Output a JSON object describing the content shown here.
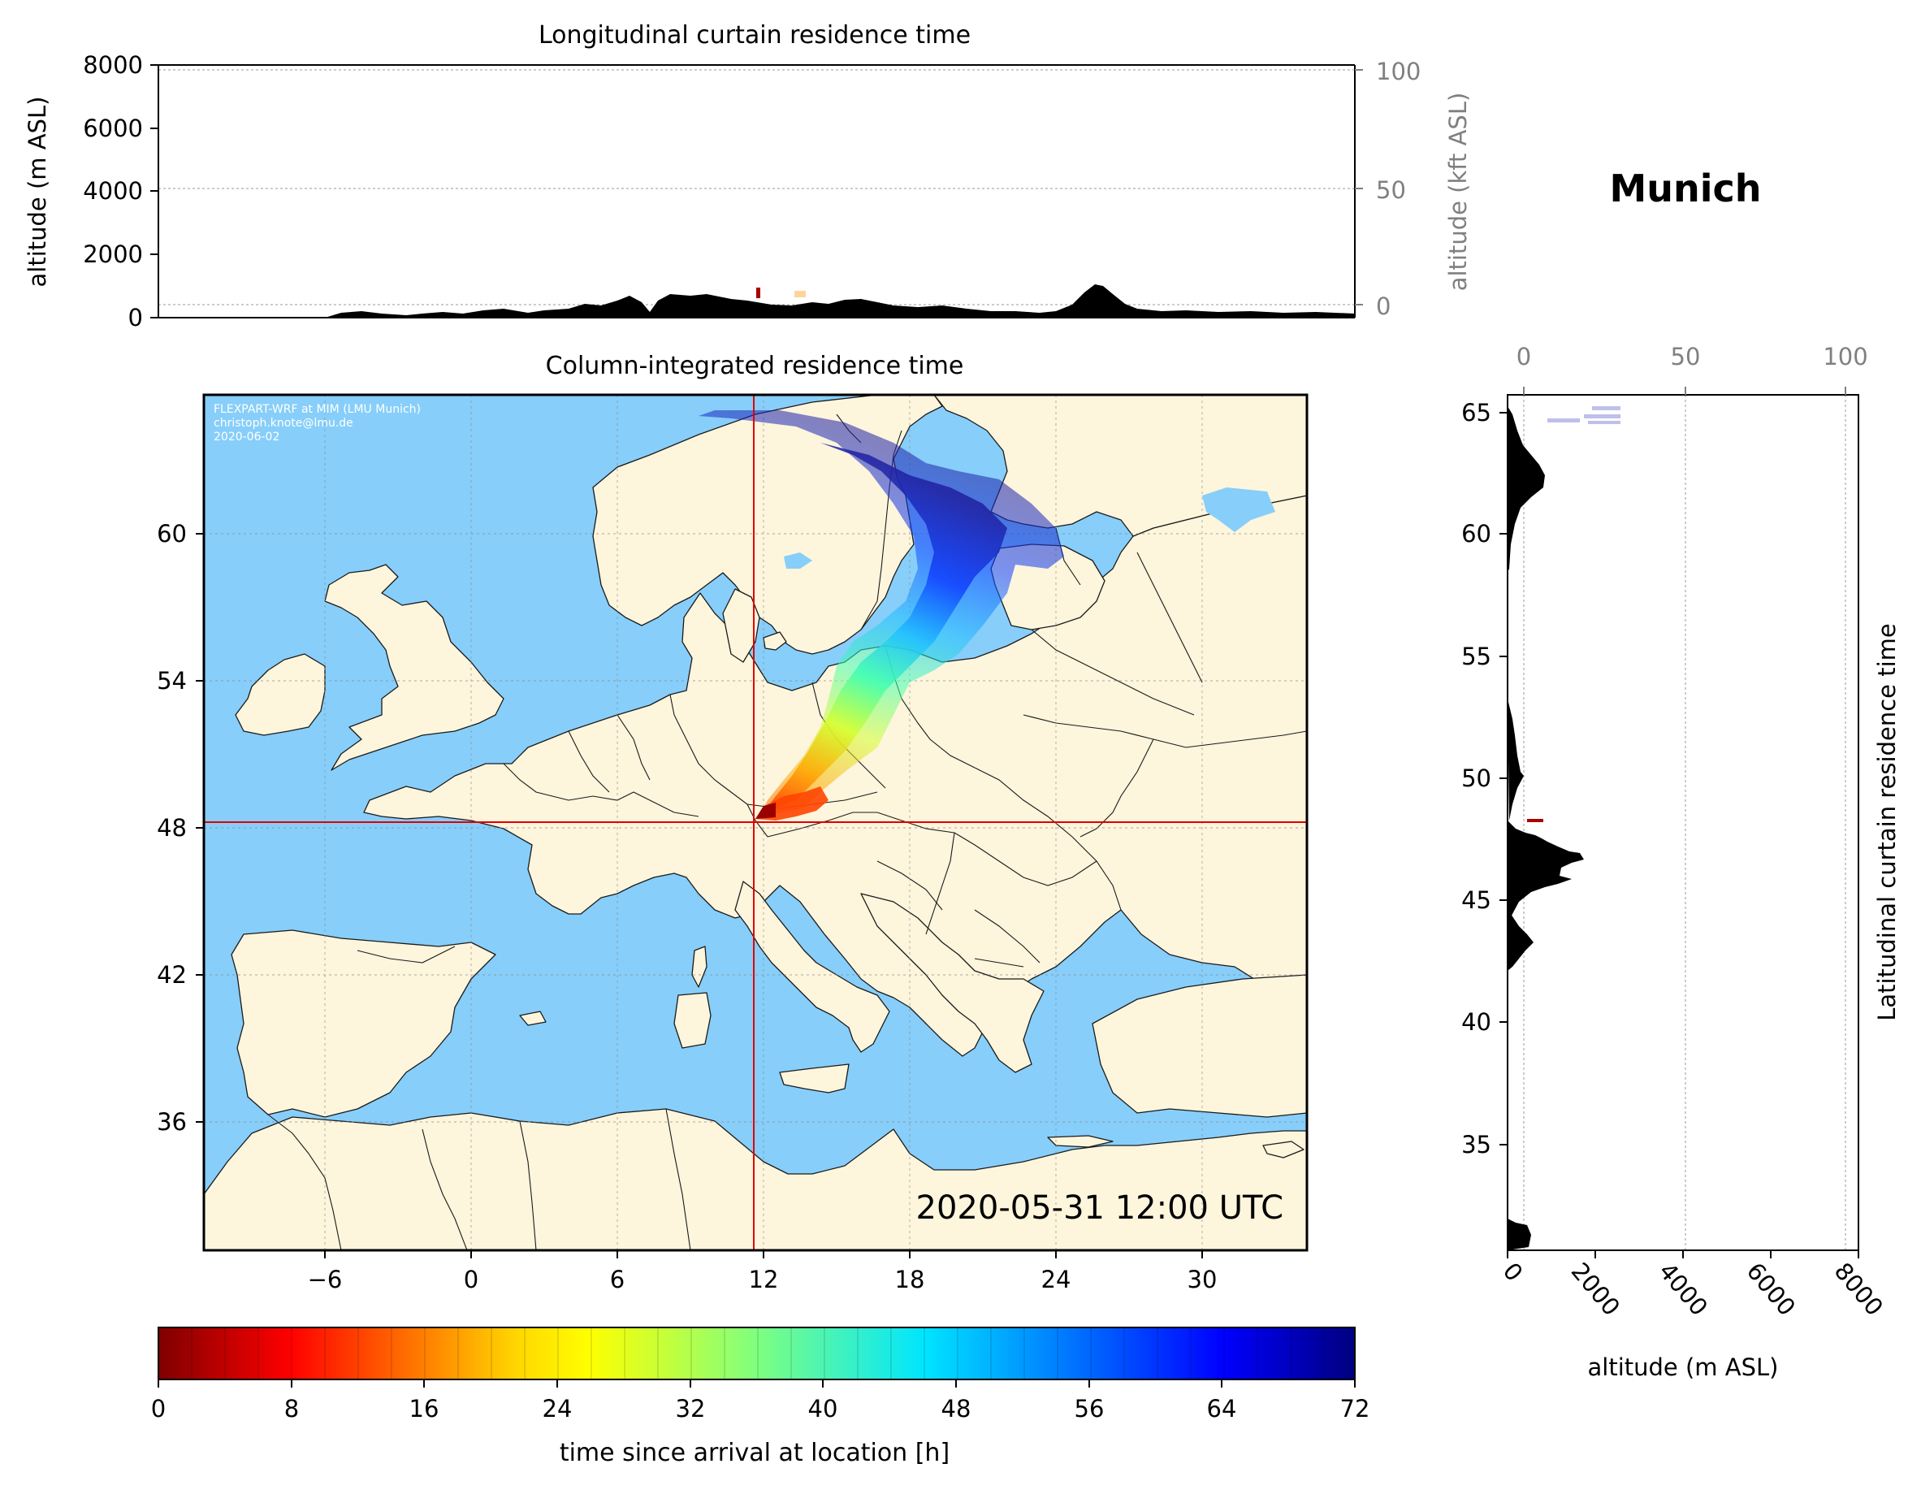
{
  "location_title": "Munich",
  "longitudinal": {
    "title": "Longitudinal curtain residence time",
    "ylabel_left": "altitude (m ASL)",
    "ylabel_right": "altitude (kft ASL)",
    "y_ticks_m": [
      "0",
      "2000",
      "4000",
      "6000",
      "8000"
    ],
    "y_ticks_kft": [
      "0",
      "50",
      "100"
    ]
  },
  "map": {
    "title": "Column-integrated residence time",
    "credit_lines": [
      "FLEXPART-WRF at MIM (LMU Munich)",
      "christoph.knote@lmu.de",
      "2020-06-02"
    ],
    "timestamp": "2020-05-31 12:00 UTC",
    "lon_ticks": [
      "−6",
      "0",
      "6",
      "12",
      "18",
      "24",
      "30"
    ],
    "lat_ticks": [
      "60",
      "54",
      "48",
      "42",
      "36"
    ],
    "crosshair": {
      "lon": 11.6,
      "lat": 48.1
    },
    "colors": {
      "sea": "#87cefa",
      "land": "#fdf5dc",
      "crosshair": "#e00000"
    }
  },
  "latitudinal": {
    "title": "Latitudinal curtain residence time",
    "xlabel": "altitude (m ASL)",
    "x_ticks_m": [
      "0",
      "2000",
      "4000",
      "6000",
      "8000"
    ],
    "x_ticks_kft": [
      "0",
      "50",
      "100"
    ],
    "y_ticks": [
      "65",
      "60",
      "55",
      "50",
      "45",
      "40",
      "35"
    ]
  },
  "colorbar": {
    "label": "time since arrival at location [h]",
    "ticks": [
      "0",
      "8",
      "16",
      "24",
      "32",
      "40",
      "48",
      "56",
      "64",
      "72"
    ]
  }
}
